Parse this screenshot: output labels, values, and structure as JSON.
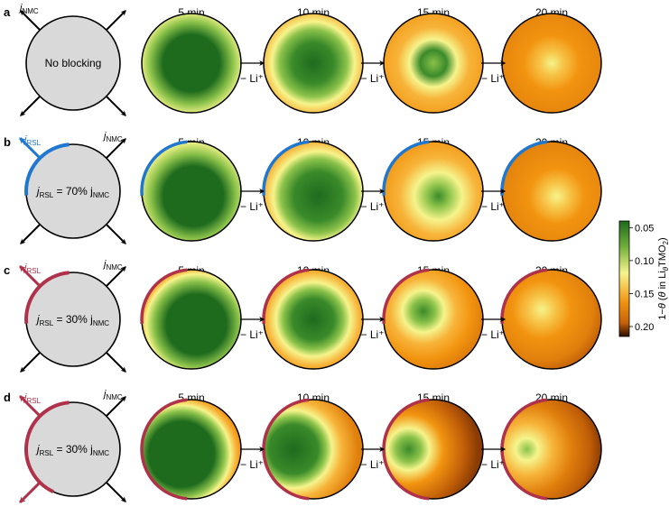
{
  "time_labels": [
    "5 min",
    "10 min",
    "15 min",
    "20 min"
  ],
  "step_label": "− Li⁺",
  "colors": {
    "rsl_blue": "#1f77d0",
    "rsl_red": "#b0324a",
    "particle_fill": "#d9d9d9",
    "dark_green": "#1e6b1e",
    "light_yellow": "#f6f48c",
    "orange": "#f29410",
    "dark_brown": "#2a0c00"
  },
  "j_nmc_label": "j",
  "j_nmc_sub": "NMC",
  "j_rsl_label": "j",
  "j_rsl_sub": "RSL",
  "panels": [
    {
      "letter": "a",
      "center_text": "No blocking",
      "rsl": null,
      "rsl_color": null
    },
    {
      "letter": "b",
      "center_text_prefix": "j",
      "center_text_sub": "RSL",
      "center_text_mid": " = 70% j",
      "center_text_sub2": "NMC",
      "rsl": "short",
      "rsl_color": "#1f77d0"
    },
    {
      "letter": "c",
      "center_text_prefix": "j",
      "center_text_sub": "RSL",
      "center_text_mid": " = 30% j",
      "center_text_sub2": "NMC",
      "rsl": "short",
      "rsl_color": "#b0324a"
    },
    {
      "letter": "d",
      "center_text_prefix": "j",
      "center_text_sub": "RSL",
      "center_text_mid": " = 30% j",
      "center_text_sub2": "NMC",
      "rsl": "long",
      "rsl_color": "#b0324a"
    }
  ],
  "colorbar": {
    "title": "1−θ (θ in LiθTMO₂)",
    "title_parts": {
      "a": "1−",
      "b": "θ",
      "c": " (",
      "d": "θ",
      "e": " in Li",
      "f": "θ",
      "g": "TMO",
      "h": "2",
      "i": ")"
    },
    "ticks": [
      "0.05",
      "0.10",
      "0.15",
      "0.20"
    ],
    "tick_values": [
      0.05,
      0.1,
      0.15,
      0.2
    ],
    "range": [
      0.04,
      0.215
    ],
    "gradient": [
      "#1e6b1e",
      "#6fae3a",
      "#f6f48c",
      "#f29410",
      "#c86208",
      "#2a0c00"
    ]
  }
}
